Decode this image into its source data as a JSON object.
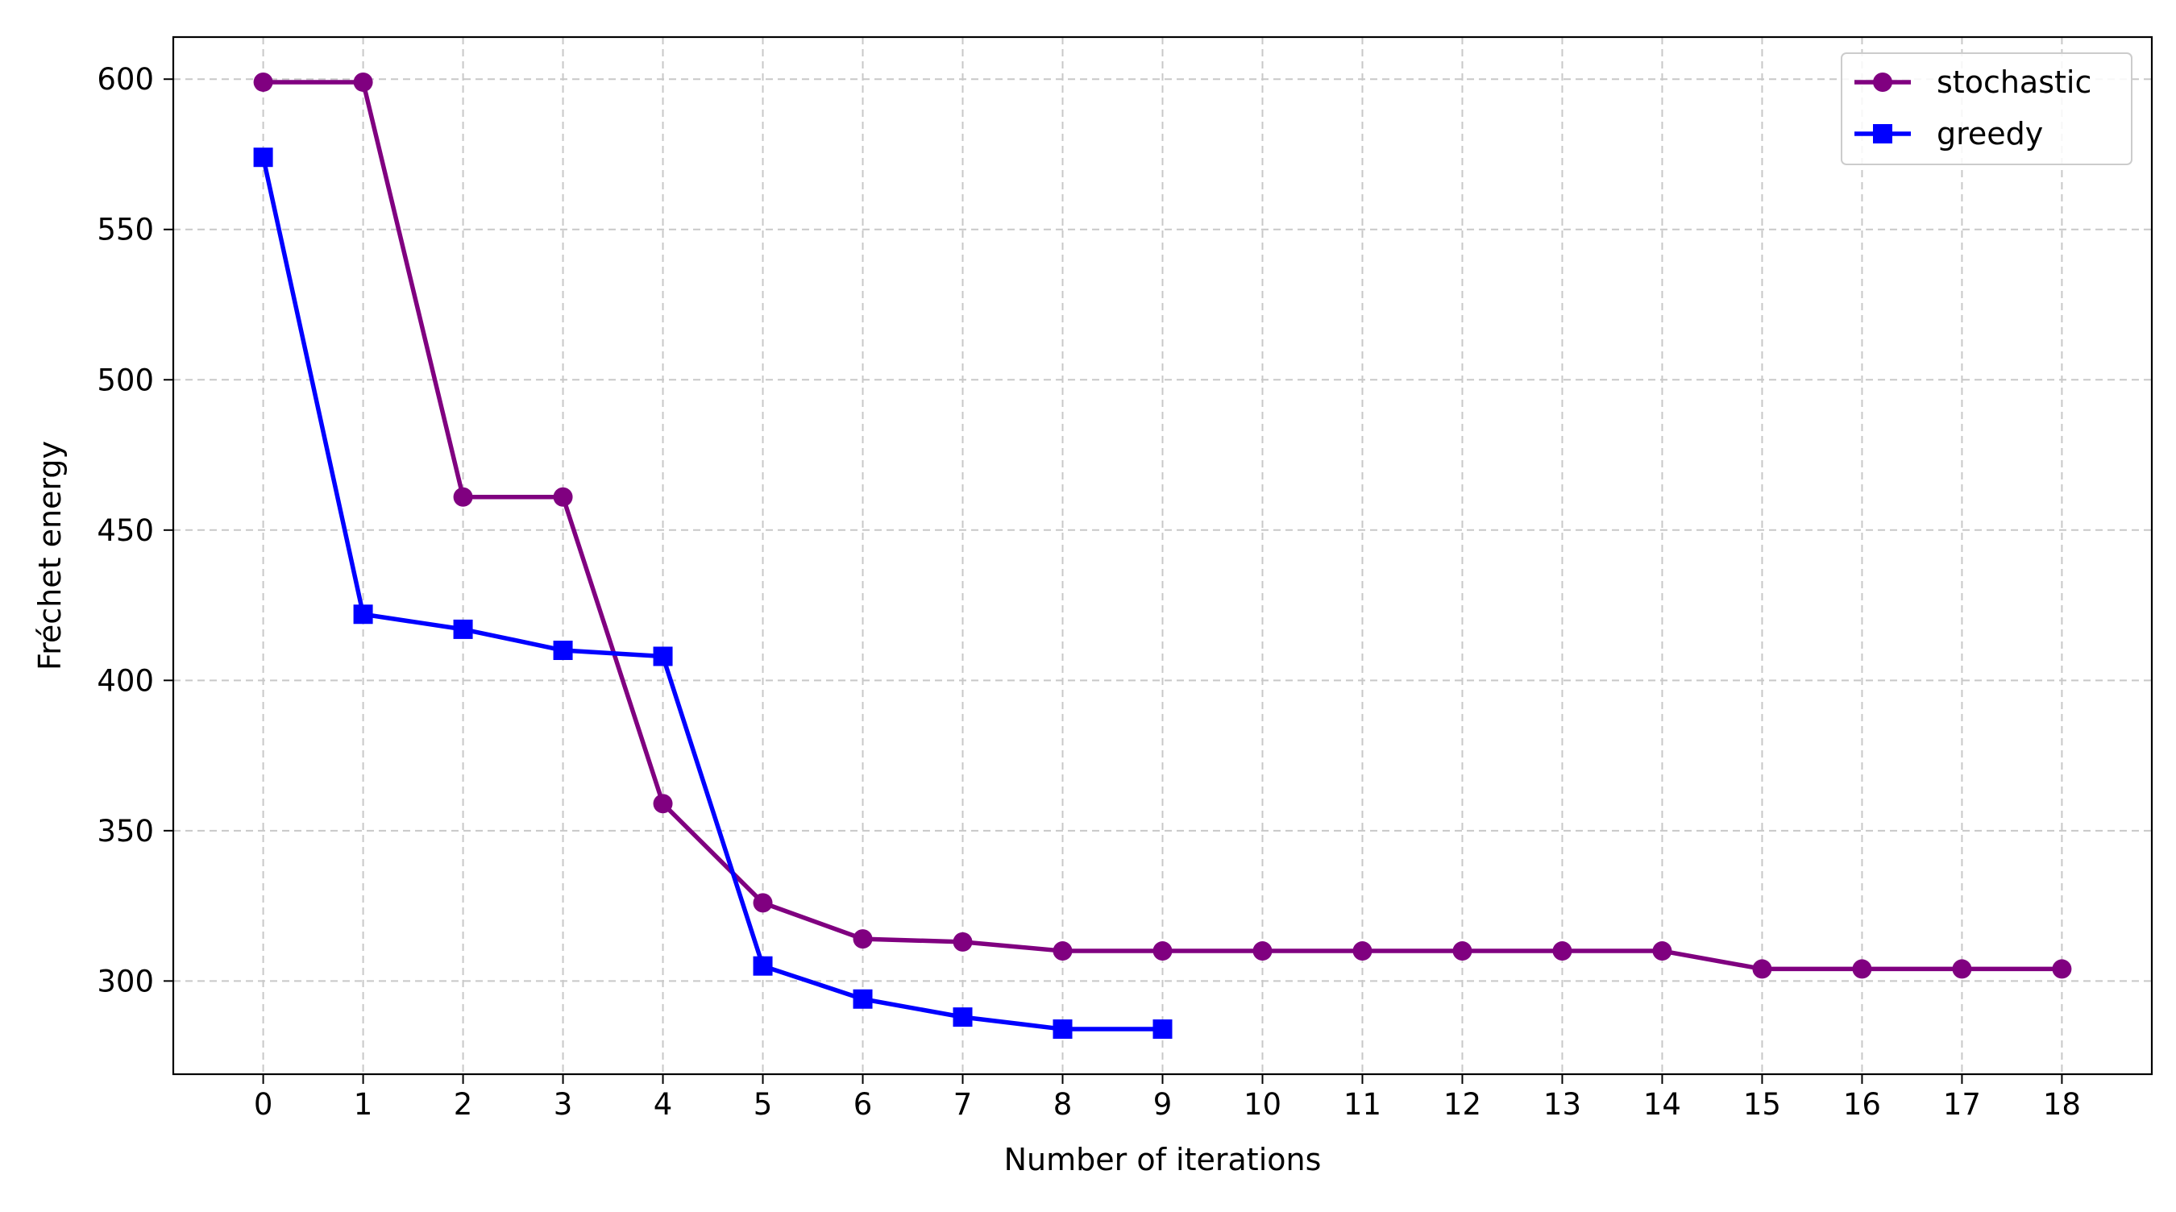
{
  "chart_data": {
    "type": "line",
    "title": "",
    "xlabel": "Number of iterations",
    "ylabel": "Fréchet energy",
    "xlim": [
      -0.9,
      18.9
    ],
    "ylim": [
      269,
      614
    ],
    "xticks": [
      0,
      1,
      2,
      3,
      4,
      5,
      6,
      7,
      8,
      9,
      10,
      11,
      12,
      13,
      14,
      15,
      16,
      17,
      18
    ],
    "yticks": [
      300,
      350,
      400,
      450,
      500,
      550,
      600
    ],
    "grid": true,
    "legend_position": "top-right",
    "series": [
      {
        "name": "stochastic",
        "color": "#800080",
        "marker": "circle",
        "x": [
          0,
          1,
          2,
          3,
          4,
          5,
          6,
          7,
          8,
          9,
          10,
          11,
          12,
          13,
          14,
          15,
          16,
          17,
          18
        ],
        "y": [
          599,
          599,
          461,
          461,
          359,
          326,
          314,
          313,
          310,
          310,
          310,
          310,
          310,
          310,
          310,
          304,
          304,
          304,
          304
        ]
      },
      {
        "name": "greedy",
        "color": "#0000ff",
        "marker": "square",
        "x": [
          0,
          1,
          2,
          3,
          4,
          5,
          6,
          7,
          8,
          9
        ],
        "y": [
          574,
          422,
          417,
          410,
          408,
          305,
          294,
          288,
          284,
          284
        ]
      }
    ]
  }
}
